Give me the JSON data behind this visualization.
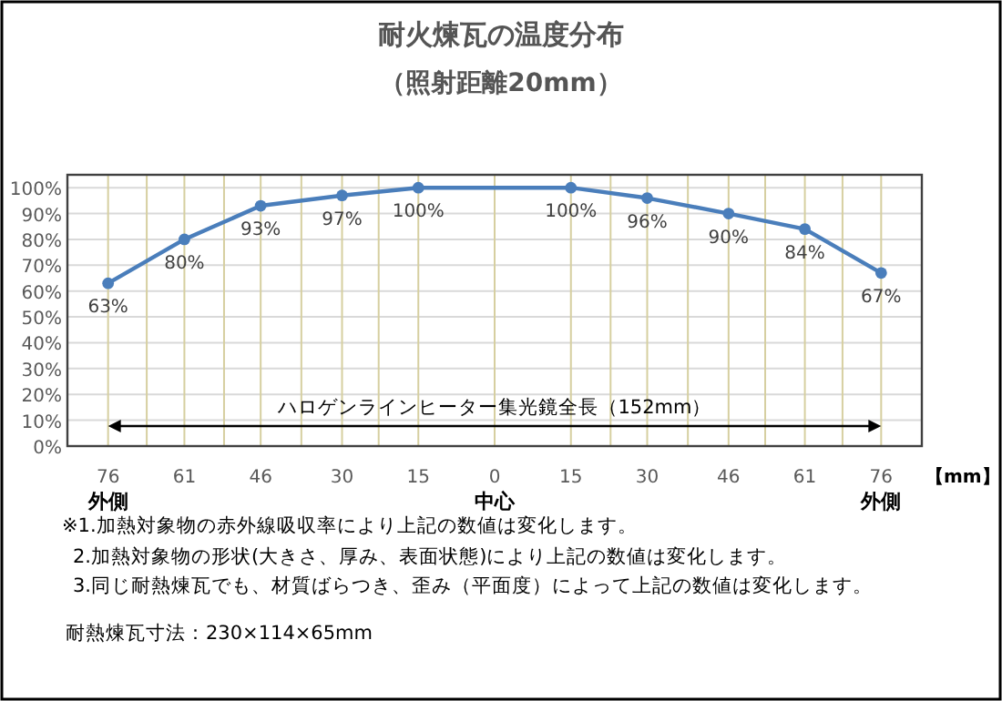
{
  "chart_data": {
    "type": "line",
    "title": "耐火煉瓦の温度分布",
    "subtitle": "（照射距離20mm）",
    "xlabel": "【mm】",
    "x": [
      -76,
      -61,
      -46,
      -30,
      -15,
      15,
      30,
      46,
      61,
      76
    ],
    "series": [
      {
        "color": "#4a7ebb",
        "values": [
          63,
          80,
          93,
          97,
          100,
          100,
          96,
          90,
          84,
          67
        ],
        "value_labels": [
          "63%",
          "80%",
          "93%",
          "97%",
          "100%",
          "100%",
          "96%",
          "90%",
          "84%",
          "67%"
        ]
      }
    ],
    "marker": "circle",
    "line_style": "solid",
    "grid": true,
    "xlim": [
      -84,
      84
    ],
    "xticks": [
      {
        "value": -76,
        "label": "76\n外側"
      },
      {
        "value": -68.4,
        "label": null
      },
      {
        "value": -61,
        "label": "61"
      },
      {
        "value": -53.2,
        "label": null
      },
      {
        "value": -46,
        "label": "46"
      },
      {
        "value": -38,
        "label": null
      },
      {
        "value": -30,
        "label": "30"
      },
      {
        "value": -22.8,
        "label": null
      },
      {
        "value": -15,
        "label": "15"
      },
      {
        "value": 0,
        "label": "0\n中心"
      },
      {
        "value": 15,
        "label": "15"
      },
      {
        "value": 22.8,
        "label": null
      },
      {
        "value": 30,
        "label": "30"
      },
      {
        "value": 38,
        "label": null
      },
      {
        "value": 46,
        "label": "46"
      },
      {
        "value": 53.2,
        "label": null
      },
      {
        "value": 61,
        "label": "61"
      },
      {
        "value": 68.4,
        "label": null
      },
      {
        "value": 76,
        "label": "76\n外側"
      }
    ],
    "ylim": [
      0,
      105
    ],
    "yticks": [
      {
        "value": 0,
        "label": "0%"
      },
      {
        "value": 10,
        "label": "10%"
      },
      {
        "value": 20,
        "label": "20%"
      },
      {
        "value": 30,
        "label": "30%"
      },
      {
        "value": 40,
        "label": "40%"
      },
      {
        "value": 50,
        "label": "50%"
      },
      {
        "value": 60,
        "label": "60%"
      },
      {
        "value": 70,
        "label": "70%"
      },
      {
        "value": 80,
        "label": "80%"
      },
      {
        "value": 90,
        "label": "90%"
      },
      {
        "value": 100,
        "label": "100%"
      }
    ],
    "annotations": [
      "ハロゲンラインヒーター集光鏡全長（152mm）",
      "※1.加熱対象物の赤外線吸収率により上記の数値は変化します。",
      "2.加熱対象物の形状(大きさ、厚み、表面状態)により上記の数値は変化します。",
      "3.同じ耐熱煉瓦でも、材質ばらつき、歪み（平面度）によって上記の数値は変化します。",
      "耐熱煉瓦寸法：230×114×65mm"
    ]
  }
}
